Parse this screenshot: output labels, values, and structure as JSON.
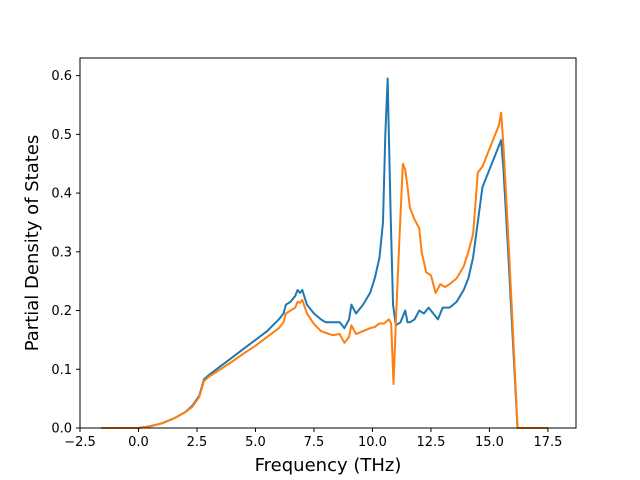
{
  "chart_data": {
    "type": "line",
    "title": "",
    "xlabel": "Frequency (THz)",
    "ylabel": "Partial Density of States",
    "xlim": [
      -2.5,
      18.7
    ],
    "ylim": [
      0.0,
      0.63
    ],
    "grid": false,
    "legend": "none",
    "xticks": [
      -2.5,
      0.0,
      2.5,
      5.0,
      7.5,
      10.0,
      12.5,
      15.0,
      17.5
    ],
    "xtick_labels": [
      "−2.5",
      "0.0",
      "2.5",
      "5.0",
      "7.5",
      "10.0",
      "12.5",
      "15.0",
      "17.5"
    ],
    "yticks": [
      0.0,
      0.1,
      0.2,
      0.3,
      0.4,
      0.5,
      0.6
    ],
    "ytick_labels": [
      "0.0",
      "0.1",
      "0.2",
      "0.3",
      "0.4",
      "0.5",
      "0.6"
    ],
    "series": [
      {
        "color": "#1f77b4",
        "x": [
          -1.6,
          0.0,
          0.5,
          1.0,
          1.5,
          2.0,
          2.3,
          2.6,
          2.8,
          3.0,
          3.5,
          4.0,
          4.5,
          5.0,
          5.5,
          6.0,
          6.2,
          6.3,
          6.5,
          6.7,
          6.8,
          6.9,
          7.0,
          7.2,
          7.5,
          7.8,
          8.0,
          8.3,
          8.6,
          8.8,
          9.0,
          9.1,
          9.3,
          9.6,
          9.9,
          10.1,
          10.3,
          10.45,
          10.55,
          10.65,
          10.7,
          10.78,
          10.88,
          11.0,
          11.2,
          11.4,
          11.5,
          11.6,
          11.8,
          12.0,
          12.2,
          12.4,
          12.6,
          12.8,
          13.0,
          13.3,
          13.6,
          13.9,
          14.1,
          14.3,
          14.5,
          14.7,
          14.9,
          15.1,
          15.3,
          15.4,
          15.5,
          15.6,
          15.8,
          16.0,
          16.2,
          16.5,
          17.0,
          17.5
        ],
        "y": [
          0.0,
          0.0,
          0.003,
          0.008,
          0.016,
          0.027,
          0.038,
          0.055,
          0.083,
          0.09,
          0.105,
          0.12,
          0.135,
          0.15,
          0.165,
          0.185,
          0.195,
          0.21,
          0.215,
          0.225,
          0.235,
          0.23,
          0.235,
          0.21,
          0.195,
          0.185,
          0.18,
          0.18,
          0.18,
          0.17,
          0.185,
          0.21,
          0.195,
          0.21,
          0.23,
          0.255,
          0.29,
          0.35,
          0.5,
          0.595,
          0.5,
          0.36,
          0.21,
          0.175,
          0.18,
          0.2,
          0.18,
          0.18,
          0.185,
          0.2,
          0.195,
          0.205,
          0.195,
          0.185,
          0.205,
          0.205,
          0.215,
          0.235,
          0.255,
          0.29,
          0.35,
          0.41,
          0.43,
          0.45,
          0.47,
          0.48,
          0.49,
          0.44,
          0.3,
          0.15,
          0.0,
          0.0,
          0.0,
          0.0
        ]
      },
      {
        "color": "#ff7f0e",
        "x": [
          -1.6,
          0.0,
          0.5,
          1.0,
          1.5,
          2.0,
          2.3,
          2.6,
          2.8,
          3.0,
          3.5,
          4.0,
          4.5,
          5.0,
          5.5,
          6.0,
          6.2,
          6.3,
          6.5,
          6.7,
          6.8,
          6.9,
          7.0,
          7.2,
          7.5,
          7.8,
          8.0,
          8.3,
          8.6,
          8.8,
          9.0,
          9.1,
          9.3,
          9.6,
          9.9,
          10.1,
          10.3,
          10.5,
          10.7,
          10.8,
          10.9,
          11.0,
          11.15,
          11.3,
          11.4,
          11.5,
          11.6,
          11.8,
          12.0,
          12.1,
          12.3,
          12.5,
          12.7,
          12.9,
          13.1,
          13.3,
          13.6,
          13.9,
          14.1,
          14.3,
          14.4,
          14.5,
          14.6,
          14.7,
          14.9,
          15.1,
          15.3,
          15.4,
          15.5,
          15.6,
          15.8,
          16.0,
          16.2,
          16.5,
          17.0,
          17.5
        ],
        "y": [
          0.0,
          0.0,
          0.003,
          0.008,
          0.016,
          0.027,
          0.036,
          0.053,
          0.08,
          0.087,
          0.1,
          0.113,
          0.127,
          0.14,
          0.155,
          0.17,
          0.18,
          0.195,
          0.2,
          0.205,
          0.215,
          0.213,
          0.218,
          0.195,
          0.177,
          0.165,
          0.162,
          0.158,
          0.16,
          0.145,
          0.155,
          0.175,
          0.16,
          0.165,
          0.17,
          0.172,
          0.178,
          0.178,
          0.185,
          0.178,
          0.075,
          0.18,
          0.32,
          0.45,
          0.44,
          0.41,
          0.375,
          0.355,
          0.34,
          0.3,
          0.265,
          0.26,
          0.23,
          0.245,
          0.24,
          0.245,
          0.255,
          0.275,
          0.3,
          0.33,
          0.38,
          0.435,
          0.44,
          0.445,
          0.465,
          0.485,
          0.505,
          0.515,
          0.537,
          0.48,
          0.33,
          0.17,
          0.0,
          0.0,
          0.0,
          0.0
        ]
      }
    ]
  }
}
